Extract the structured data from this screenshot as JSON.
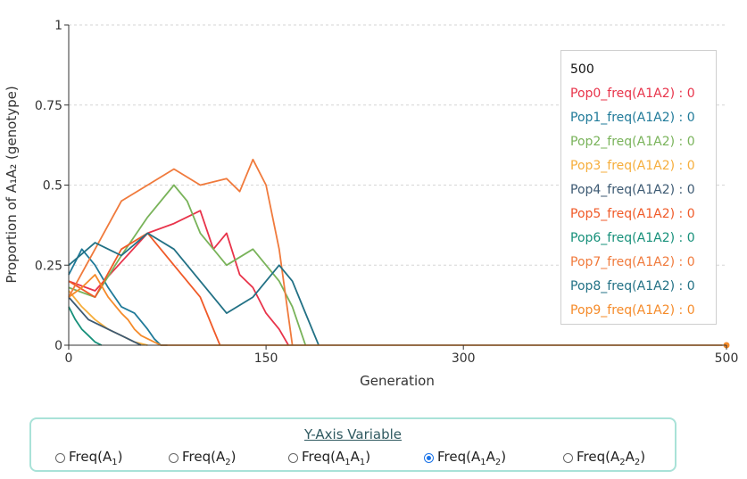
{
  "chart_data": {
    "type": "line",
    "ylabel": "Proportion of A₁A₂ (genotype)",
    "xlabel": "Generation",
    "xlim": [
      0,
      500
    ],
    "ylim": [
      0,
      1
    ],
    "xticks": [
      "0",
      "150",
      "300",
      "500"
    ],
    "yticks": [
      "0",
      "0.25",
      "0.5",
      "0.75",
      "1"
    ],
    "grid": "dashed horizontal",
    "series": [
      {
        "name": "Pop0_freq(A1A2)",
        "color": "#e8334a",
        "x": [
          0,
          20,
          40,
          60,
          80,
          100,
          110,
          120,
          130,
          140,
          150,
          160,
          167
        ],
        "y": [
          0.2,
          0.17,
          0.26,
          0.35,
          0.38,
          0.42,
          0.3,
          0.35,
          0.22,
          0.18,
          0.1,
          0.05,
          0
        ]
      },
      {
        "name": "Pop1_freq(A1A2)",
        "color": "#1f7a99",
        "x": [
          0,
          10,
          20,
          30,
          40,
          50,
          60,
          65,
          70,
          75
        ],
        "y": [
          0.22,
          0.3,
          0.25,
          0.18,
          0.12,
          0.1,
          0.05,
          0.02,
          0,
          0
        ]
      },
      {
        "name": "Pop2_freq(A1A2)",
        "color": "#79b35a",
        "x": [
          0,
          20,
          40,
          60,
          80,
          90,
          100,
          120,
          140,
          160,
          170,
          180
        ],
        "y": [
          0.18,
          0.15,
          0.28,
          0.4,
          0.5,
          0.45,
          0.35,
          0.25,
          0.3,
          0.2,
          0.12,
          0
        ]
      },
      {
        "name": "Pop3_freq(A1A2)",
        "color": "#f6ae3c",
        "x": [
          0,
          10,
          20,
          30,
          40,
          50,
          60
        ],
        "y": [
          0.17,
          0.12,
          0.08,
          0.05,
          0.03,
          0.01,
          0
        ]
      },
      {
        "name": "Pop4_freq(A1A2)",
        "color": "#3d5a73",
        "x": [
          0,
          15,
          30,
          40,
          50,
          55
        ],
        "y": [
          0.15,
          0.08,
          0.05,
          0.03,
          0.01,
          0
        ]
      },
      {
        "name": "Pop5_freq(A1A2)",
        "color": "#f05a28",
        "x": [
          0,
          20,
          40,
          60,
          80,
          100,
          110,
          115
        ],
        "y": [
          0.2,
          0.15,
          0.3,
          0.35,
          0.25,
          0.15,
          0.05,
          0
        ]
      },
      {
        "name": "Pop6_freq(A1A2)",
        "color": "#16907a",
        "x": [
          0,
          5,
          10,
          15,
          20,
          25
        ],
        "y": [
          0.12,
          0.08,
          0.05,
          0.03,
          0.01,
          0
        ]
      },
      {
        "name": "Pop7_freq(A1A2)",
        "color": "#f07a3c",
        "x": [
          0,
          20,
          40,
          60,
          80,
          100,
          120,
          130,
          140,
          150,
          160,
          170
        ],
        "y": [
          0.15,
          0.3,
          0.45,
          0.5,
          0.55,
          0.5,
          0.52,
          0.48,
          0.58,
          0.5,
          0.3,
          0
        ]
      },
      {
        "name": "Pop8_freq(A1A2)",
        "color": "#227185",
        "x": [
          0,
          20,
          40,
          60,
          80,
          100,
          120,
          140,
          160,
          170,
          180,
          190
        ],
        "y": [
          0.25,
          0.32,
          0.28,
          0.35,
          0.3,
          0.2,
          0.1,
          0.15,
          0.25,
          0.2,
          0.1,
          0
        ]
      },
      {
        "name": "Pop9_freq(A1A2)",
        "color": "#f58b2a",
        "x": [
          0,
          10,
          20,
          30,
          40,
          45,
          50,
          55,
          60,
          65,
          70,
          75,
          80,
          500
        ],
        "y": [
          0.15,
          0.18,
          0.22,
          0.15,
          0.1,
          0.08,
          0.05,
          0.03,
          0.02,
          0.01,
          0,
          0,
          0,
          0
        ]
      }
    ]
  },
  "legend": {
    "generation": "500",
    "rows": [
      {
        "text": "Pop0_freq(A1A2) : 0",
        "color": "#e8334a"
      },
      {
        "text": "Pop1_freq(A1A2) : 0",
        "color": "#1f7a99"
      },
      {
        "text": "Pop2_freq(A1A2) : 0",
        "color": "#79b35a"
      },
      {
        "text": "Pop3_freq(A1A2) : 0",
        "color": "#f6ae3c"
      },
      {
        "text": "Pop4_freq(A1A2) : 0",
        "color": "#3d5a73"
      },
      {
        "text": "Pop5_freq(A1A2) : 0",
        "color": "#f05a28"
      },
      {
        "text": "Pop6_freq(A1A2) : 0",
        "color": "#16907a"
      },
      {
        "text": "Pop7_freq(A1A2) : 0",
        "color": "#f07a3c"
      },
      {
        "text": "Pop8_freq(A1A2) : 0",
        "color": "#227185"
      },
      {
        "text": "Pop9_freq(A1A2) : 0",
        "color": "#f58b2a"
      }
    ]
  },
  "controls": {
    "title": "Y-Axis Variable",
    "options": [
      {
        "pre": "Freq(A",
        "sub1": "1",
        "mid": ")",
        "sub2": "",
        "post": "",
        "checked": false
      },
      {
        "pre": "Freq(A",
        "sub1": "2",
        "mid": ")",
        "sub2": "",
        "post": "",
        "checked": false
      },
      {
        "pre": "Freq(A",
        "sub1": "1",
        "mid": "A",
        "sub2": "1",
        "post": ")",
        "checked": false
      },
      {
        "pre": "Freq(A",
        "sub1": "1",
        "mid": "A",
        "sub2": "2",
        "post": ")",
        "checked": true
      },
      {
        "pre": "Freq(A",
        "sub1": "2",
        "mid": "A",
        "sub2": "2",
        "post": ")",
        "checked": false
      }
    ]
  }
}
